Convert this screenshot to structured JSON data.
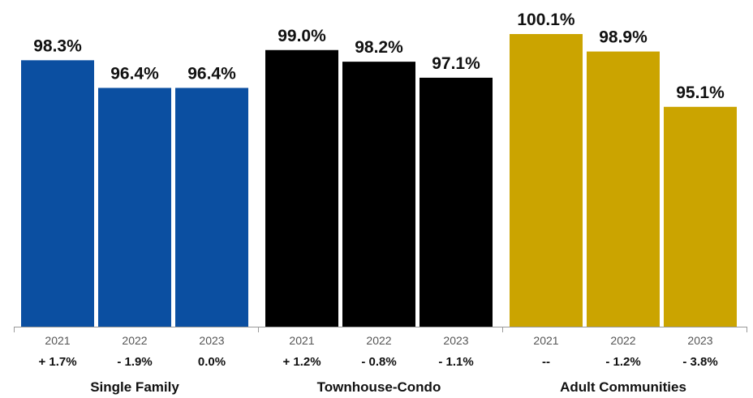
{
  "chart_data": {
    "type": "bar",
    "grid": false,
    "legend": "none",
    "groups": [
      {
        "name": "Single Family",
        "color": "#0b4fa1",
        "bars": [
          {
            "year": "2021",
            "value": 98.3,
            "value_label": "98.3%",
            "change": "+ 1.7%"
          },
          {
            "year": "2022",
            "value": 96.4,
            "value_label": "96.4%",
            "change": "- 1.9%"
          },
          {
            "year": "2023",
            "value": 96.4,
            "value_label": "96.4%",
            "change": "0.0%"
          }
        ]
      },
      {
        "name": "Townhouse-Condo",
        "color": "#000000",
        "bars": [
          {
            "year": "2021",
            "value": 99.0,
            "value_label": "99.0%",
            "change": "+ 1.2%"
          },
          {
            "year": "2022",
            "value": 98.2,
            "value_label": "98.2%",
            "change": "- 0.8%"
          },
          {
            "year": "2023",
            "value": 97.1,
            "value_label": "97.1%",
            "change": "- 1.1%"
          }
        ]
      },
      {
        "name": "Adult Communities",
        "color": "#cba400",
        "bars": [
          {
            "year": "2021",
            "value": 100.1,
            "value_label": "100.1%",
            "change": "--"
          },
          {
            "year": "2022",
            "value": 98.9,
            "value_label": "98.9%",
            "change": "- 1.2%"
          },
          {
            "year": "2023",
            "value": 95.1,
            "value_label": "95.1%",
            "change": "- 3.8%"
          }
        ]
      }
    ],
    "ylim": [
      80,
      100.1
    ]
  }
}
